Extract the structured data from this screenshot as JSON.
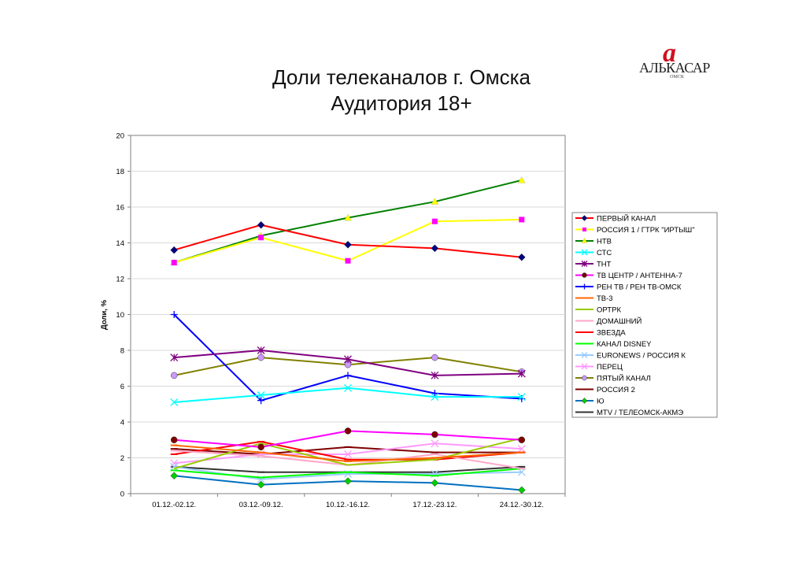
{
  "logo": {
    "mark": "a",
    "word": "АЛЬКАСАР",
    "city": "ОМСК"
  },
  "chart_data": {
    "type": "line",
    "title": "Доли телеканалов г. Омска",
    "subtitle": "Аудитория 18+",
    "xlabel": "",
    "ylabel": "Доли, %",
    "ylim": [
      0,
      20
    ],
    "yticks": [
      0,
      2,
      4,
      6,
      8,
      10,
      12,
      14,
      16,
      18,
      20
    ],
    "grid": true,
    "legend_position": "right",
    "categories": [
      "01.12.-02.12.",
      "03.12.-09.12.",
      "10.12.-16.12.",
      "17.12.-23.12.",
      "24.12.-30.12."
    ],
    "series": [
      {
        "name": "ПЕРВЫЙ КАНАЛ",
        "color": "#ff0000",
        "marker": "diamond",
        "marker_color": "#000080",
        "values": [
          13.6,
          15.0,
          13.9,
          13.7,
          13.2
        ]
      },
      {
        "name": "РОССИЯ 1 / ГТРК \"ИРТЫШ\"",
        "color": "#ffff00",
        "marker": "square",
        "marker_color": "#ff00ff",
        "values": [
          12.9,
          14.3,
          13.0,
          15.2,
          15.3
        ]
      },
      {
        "name": "НТВ",
        "color": "#008000",
        "marker": "triangle",
        "marker_color": "#ffff00",
        "values": [
          12.9,
          14.4,
          15.4,
          16.3,
          17.5
        ]
      },
      {
        "name": "СТС",
        "color": "#00ffff",
        "marker": "x",
        "marker_color": "#00ffff",
        "values": [
          5.1,
          5.5,
          5.9,
          5.4,
          5.4
        ]
      },
      {
        "name": "ТНТ",
        "color": "#800080",
        "marker": "star",
        "marker_color": "#800080",
        "values": [
          7.6,
          8.0,
          7.5,
          6.6,
          6.7
        ]
      },
      {
        "name": "ТВ ЦЕНТР / АНТЕННА-7",
        "color": "#ff00ff",
        "marker": "circle",
        "marker_color": "#800000",
        "values": [
          3.0,
          2.6,
          3.5,
          3.3,
          3.0
        ]
      },
      {
        "name": "РЕН ТВ / РЕН ТВ-ОМСК",
        "color": "#0000ff",
        "marker": "plus",
        "marker_color": "#0000ff",
        "values": [
          10.0,
          5.2,
          6.6,
          5.6,
          5.3
        ]
      },
      {
        "name": "ТВ-3",
        "color": "#ff6600",
        "marker": "dash",
        "marker_color": "#ff6600",
        "values": [
          2.7,
          2.3,
          1.8,
          2.0,
          2.3
        ]
      },
      {
        "name": "ОРТРК",
        "color": "#99cc00",
        "marker": "none",
        "marker_color": "#99cc00",
        "values": [
          1.4,
          2.8,
          1.6,
          1.9,
          3.1
        ]
      },
      {
        "name": "ДОМАШНИЙ",
        "color": "#ffa6c9",
        "marker": "dash",
        "marker_color": "#ffa6c9",
        "values": [
          2.4,
          2.1,
          1.6,
          2.2,
          1.4
        ]
      },
      {
        "name": "ЗВЕЗДА",
        "color": "#ff0000",
        "marker": "dash",
        "marker_color": "#ff0000",
        "values": [
          2.2,
          2.9,
          1.9,
          1.9,
          2.3
        ]
      },
      {
        "name": "КАНАЛ DISNEY",
        "color": "#00ff00",
        "marker": "dash",
        "marker_color": "#00ff00",
        "values": [
          1.3,
          0.9,
          1.2,
          1.0,
          1.4
        ]
      },
      {
        "name": "EURONEWS / РОССИЯ К",
        "color": "#99ccff",
        "marker": "x",
        "marker_color": "#99ccff",
        "values": [
          1.5,
          0.8,
          1.1,
          1.1,
          1.2
        ]
      },
      {
        "name": "ПЕРЕЦ",
        "color": "#ff99ff",
        "marker": "x",
        "marker_color": "#ff99ff",
        "values": [
          1.7,
          2.2,
          2.2,
          2.8,
          2.5
        ]
      },
      {
        "name": "ПЯТЫЙ КАНАЛ",
        "color": "#808000",
        "marker": "circle",
        "marker_color": "#cc99ff",
        "values": [
          6.6,
          7.6,
          7.2,
          7.6,
          6.8
        ]
      },
      {
        "name": "РОССИЯ 2",
        "color": "#800000",
        "marker": "dash",
        "marker_color": "#800000",
        "values": [
          2.5,
          2.2,
          2.6,
          2.3,
          2.3
        ]
      },
      {
        "name": "Ю",
        "color": "#0070c0",
        "marker": "diamond",
        "marker_color": "#00cc00",
        "values": [
          1.0,
          0.5,
          0.7,
          0.6,
          0.2
        ]
      },
      {
        "name": "MTV / ТЕЛЕОМСК-АКМЭ",
        "color": "#333333",
        "marker": "dash",
        "marker_color": "#333333",
        "values": [
          1.5,
          1.2,
          1.2,
          1.2,
          1.5
        ]
      }
    ]
  }
}
